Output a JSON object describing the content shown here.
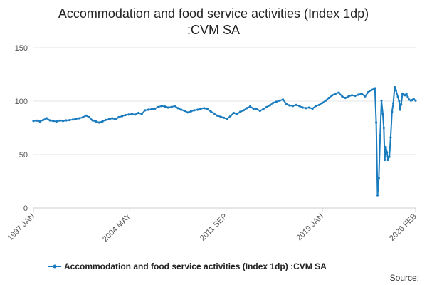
{
  "colors": {
    "series": "#1a7cbf",
    "grid": "#e6e6e6",
    "axis": "#cccccc"
  },
  "footer": {
    "source_label": "Source:"
  },
  "chart_data": {
    "type": "line",
    "title_lines": [
      "Accommodation and food service activities (Index 1dp)",
      ":CVM SA"
    ],
    "xlabel": "",
    "ylabel": "",
    "ylim": [
      0,
      150
    ],
    "yticks": [
      0,
      50,
      100,
      150
    ],
    "grid": true,
    "legend_position": "bottom",
    "x_range": [
      1997.0,
      2026.1
    ],
    "x_ticks": [
      {
        "t": 1997.0,
        "label": "1997 JAN"
      },
      {
        "t": 2004.33,
        "label": "2004 MAY"
      },
      {
        "t": 2011.67,
        "label": "2011 SEP"
      },
      {
        "t": 2019.0,
        "label": "2019 JAN"
      },
      {
        "t": 2026.1,
        "label": "2026 FEB"
      }
    ],
    "series": [
      {
        "name": "Accommodation and food service activities (Index 1dp) :CVM SA",
        "points": [
          [
            1997.0,
            81.5
          ],
          [
            1997.25,
            81.8
          ],
          [
            1997.5,
            81.0
          ],
          [
            1997.75,
            82.5
          ],
          [
            1998.0,
            84.0
          ],
          [
            1998.25,
            82.0
          ],
          [
            1998.5,
            81.5
          ],
          [
            1998.75,
            81.0
          ],
          [
            1999.0,
            81.8
          ],
          [
            1999.25,
            81.5
          ],
          [
            1999.5,
            82.0
          ],
          [
            1999.75,
            82.3
          ],
          [
            2000.0,
            82.8
          ],
          [
            2000.25,
            83.5
          ],
          [
            2000.5,
            84.0
          ],
          [
            2000.75,
            84.8
          ],
          [
            2001.0,
            86.5
          ],
          [
            2001.25,
            85.0
          ],
          [
            2001.5,
            82.0
          ],
          [
            2001.75,
            81.0
          ],
          [
            2002.0,
            80.0
          ],
          [
            2002.25,
            81.0
          ],
          [
            2002.5,
            82.5
          ],
          [
            2002.75,
            83.0
          ],
          [
            2003.0,
            84.0
          ],
          [
            2003.25,
            83.0
          ],
          [
            2003.5,
            85.0
          ],
          [
            2003.75,
            86.0
          ],
          [
            2004.0,
            87.0
          ],
          [
            2004.25,
            87.5
          ],
          [
            2004.5,
            88.0
          ],
          [
            2004.75,
            87.5
          ],
          [
            2005.0,
            89.0
          ],
          [
            2005.25,
            88.0
          ],
          [
            2005.5,
            91.5
          ],
          [
            2005.75,
            92.0
          ],
          [
            2006.0,
            92.5
          ],
          [
            2006.25,
            93.0
          ],
          [
            2006.5,
            94.5
          ],
          [
            2006.75,
            95.5
          ],
          [
            2007.0,
            95.0
          ],
          [
            2007.25,
            94.0
          ],
          [
            2007.5,
            94.5
          ],
          [
            2007.75,
            95.5
          ],
          [
            2008.0,
            93.5
          ],
          [
            2008.25,
            92.0
          ],
          [
            2008.5,
            91.0
          ],
          [
            2008.75,
            89.5
          ],
          [
            2009.0,
            90.5
          ],
          [
            2009.25,
            91.5
          ],
          [
            2009.5,
            92.0
          ],
          [
            2009.75,
            93.0
          ],
          [
            2010.0,
            93.5
          ],
          [
            2010.25,
            92.5
          ],
          [
            2010.5,
            90.5
          ],
          [
            2010.75,
            88.5
          ],
          [
            2011.0,
            86.5
          ],
          [
            2011.25,
            85.5
          ],
          [
            2011.5,
            84.5
          ],
          [
            2011.75,
            83.5
          ],
          [
            2012.0,
            86.0
          ],
          [
            2012.25,
            89.0
          ],
          [
            2012.5,
            88.0
          ],
          [
            2012.75,
            90.0
          ],
          [
            2013.0,
            91.5
          ],
          [
            2013.25,
            93.5
          ],
          [
            2013.5,
            95.0
          ],
          [
            2013.75,
            93.0
          ],
          [
            2014.0,
            92.5
          ],
          [
            2014.25,
            91.0
          ],
          [
            2014.5,
            92.5
          ],
          [
            2014.75,
            94.5
          ],
          [
            2015.0,
            96.0
          ],
          [
            2015.25,
            98.5
          ],
          [
            2015.5,
            99.5
          ],
          [
            2015.75,
            100.5
          ],
          [
            2016.0,
            101.5
          ],
          [
            2016.25,
            97.5
          ],
          [
            2016.5,
            96.0
          ],
          [
            2016.75,
            95.5
          ],
          [
            2017.0,
            96.5
          ],
          [
            2017.25,
            95.5
          ],
          [
            2017.5,
            94.0
          ],
          [
            2017.75,
            93.5
          ],
          [
            2018.0,
            94.0
          ],
          [
            2018.25,
            93.0
          ],
          [
            2018.5,
            95.5
          ],
          [
            2018.75,
            96.5
          ],
          [
            2019.0,
            98.5
          ],
          [
            2019.25,
            100.5
          ],
          [
            2019.5,
            103.0
          ],
          [
            2019.75,
            105.5
          ],
          [
            2020.0,
            107.0
          ],
          [
            2020.25,
            108.0
          ],
          [
            2020.5,
            104.5
          ],
          [
            2020.75,
            103.0
          ],
          [
            2021.0,
            104.5
          ],
          [
            2021.25,
            105.5
          ],
          [
            2021.5,
            105.0
          ],
          [
            2021.75,
            106.0
          ],
          [
            2022.0,
            107.0
          ],
          [
            2022.25,
            104.5
          ],
          [
            2022.5,
            108.5
          ],
          [
            2022.75,
            110.5
          ],
          [
            2023.0,
            112.0
          ],
          [
            2023.1,
            80.0
          ],
          [
            2023.2,
            12.0
          ],
          [
            2023.3,
            28.0
          ],
          [
            2023.4,
            68.0
          ],
          [
            2023.5,
            100.5
          ],
          [
            2023.6,
            88.0
          ],
          [
            2023.68,
            75.0
          ],
          [
            2023.75,
            45.0
          ],
          [
            2023.83,
            57.0
          ],
          [
            2023.92,
            52.0
          ],
          [
            2024.0,
            45.0
          ],
          [
            2024.1,
            48.0
          ],
          [
            2024.2,
            66.0
          ],
          [
            2024.3,
            90.0
          ],
          [
            2024.4,
            98.0
          ],
          [
            2024.5,
            113.0
          ],
          [
            2024.6,
            110.0
          ],
          [
            2024.75,
            104.0
          ],
          [
            2024.85,
            100.0
          ],
          [
            2024.92,
            92.0
          ],
          [
            2025.0,
            97.0
          ],
          [
            2025.1,
            107.0
          ],
          [
            2025.2,
            106.0
          ],
          [
            2025.3,
            105.5
          ],
          [
            2025.4,
            107.0
          ],
          [
            2025.5,
            104.0
          ],
          [
            2025.6,
            101.5
          ],
          [
            2025.75,
            100.5
          ],
          [
            2025.85,
            101.0
          ],
          [
            2025.95,
            102.0
          ],
          [
            2026.1,
            100.5
          ]
        ]
      }
    ]
  }
}
